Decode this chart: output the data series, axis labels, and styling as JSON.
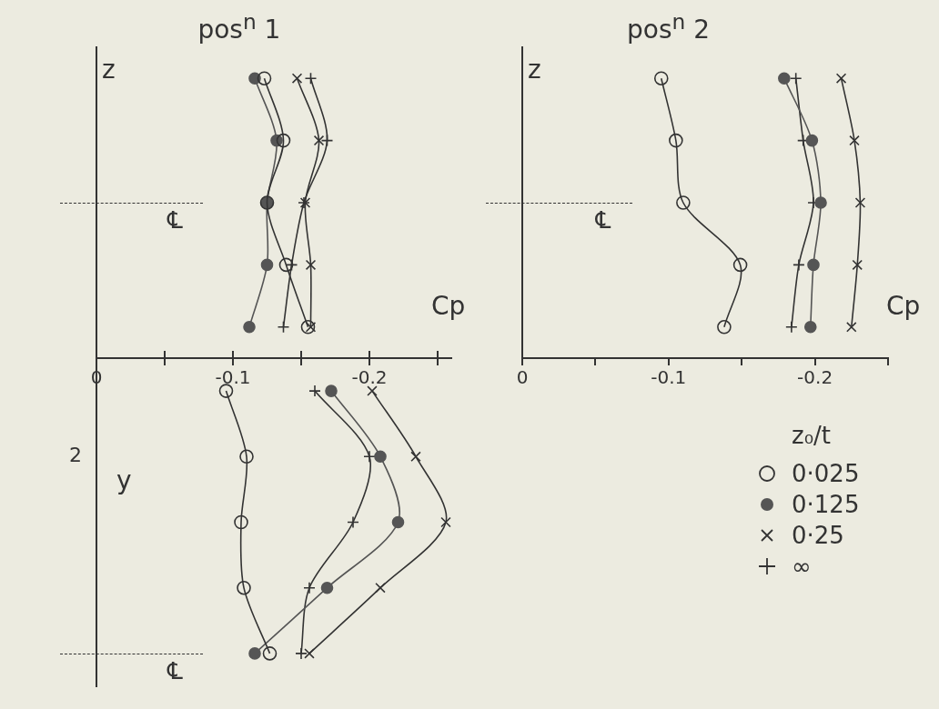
{
  "chart_data": [
    {
      "type": "line",
      "orientation": "horizontal",
      "title": "pos$^{n}$ 1",
      "xlabel": "Cp",
      "ylabel": "z",
      "annotations": [
        "℄"
      ],
      "categories": [
        null,
        null,
        null,
        null,
        null
      ],
      "xlim": [
        0,
        -0.26
      ],
      "xticks": [
        0,
        {
          "value": -0.05,
          "label": null
        },
        -0.1,
        {
          "value": -0.15,
          "label": null
        },
        -0.2,
        {
          "value": -0.25,
          "label": null
        }
      ],
      "tick_labels": "x",
      "grid": false,
      "legend": false,
      "series": [
        {
          "color": "#333333",
          "marker": "circle",
          "values": [
            -0.123,
            -0.137,
            -0.125,
            -0.139,
            -0.155
          ]
        },
        {
          "color": "#555555",
          "marker": "dot",
          "values": [
            -0.116,
            -0.132,
            -0.125,
            -0.125,
            -0.112
          ]
        },
        {
          "color": "#333333",
          "marker": "cross",
          "values": [
            -0.147,
            -0.163,
            -0.153,
            -0.157,
            -0.157
          ]
        },
        {
          "color": "#333333",
          "marker": "plus",
          "values": [
            -0.157,
            -0.169,
            -0.152,
            -0.143,
            -0.137
          ]
        }
      ]
    },
    {
      "type": "line",
      "orientation": "horizontal",
      "title": "pos$^{n}$ 2",
      "xlabel": "Cp",
      "ylabel": "z",
      "annotations": [
        "℄"
      ],
      "categories": [
        null,
        null,
        null,
        null,
        null
      ],
      "xlim": [
        0,
        -0.25
      ],
      "xticks": [
        0,
        {
          "value": -0.05,
          "label": null
        },
        -0.1,
        {
          "value": -0.15,
          "label": null
        },
        -0.2,
        {
          "value": -0.25,
          "label": null
        }
      ],
      "tick_labels": "x",
      "grid": false,
      "legend": false,
      "series": [
        {
          "color": "#333333",
          "marker": "circle",
          "values": [
            -0.095,
            -0.105,
            -0.11,
            -0.149,
            -0.138
          ]
        },
        {
          "color": "#555555",
          "marker": "dot",
          "values": [
            -0.179,
            -0.198,
            -0.204,
            -0.199,
            -0.197
          ]
        },
        {
          "color": "#333333",
          "marker": "cross",
          "values": [
            -0.218,
            -0.227,
            -0.231,
            -0.229,
            -0.225
          ]
        },
        {
          "color": "#333333",
          "marker": "plus",
          "values": [
            -0.187,
            -0.192,
            -0.199,
            -0.189,
            -0.184
          ]
        }
      ]
    },
    {
      "type": "line",
      "orientation": "horizontal",
      "ylabel": "y",
      "legend_title": "z₀/t",
      "annotations": [
        "℄",
        "2"
      ],
      "categories": [
        null,
        null,
        null,
        null,
        null
      ],
      "xlim": [
        0,
        -0.26
      ],
      "xticks": [
        0,
        {
          "value": -0.05,
          "label": null
        },
        -0.1,
        {
          "value": -0.15,
          "label": null
        },
        -0.2,
        {
          "value": -0.25,
          "label": null
        }
      ],
      "tick_labels": false,
      "grid": false,
      "legend": "right",
      "series": [
        {
          "name": "0·025",
          "color": "#333333",
          "marker": "circle",
          "values": [
            -0.095,
            -0.11,
            -0.106,
            -0.108,
            -0.127
          ]
        },
        {
          "name": "0·125",
          "color": "#555555",
          "marker": "dot",
          "values": [
            -0.172,
            -0.208,
            -0.221,
            -0.169,
            -0.116
          ]
        },
        {
          "name": "0·25",
          "color": "#333333",
          "marker": "cross",
          "values": [
            -0.202,
            -0.234,
            -0.256,
            -0.208,
            -0.156
          ]
        },
        {
          "name": "∞",
          "color": "#333333",
          "marker": "plus",
          "values": [
            -0.16,
            -0.2,
            -0.188,
            -0.156,
            -0.15
          ]
        }
      ]
    }
  ]
}
